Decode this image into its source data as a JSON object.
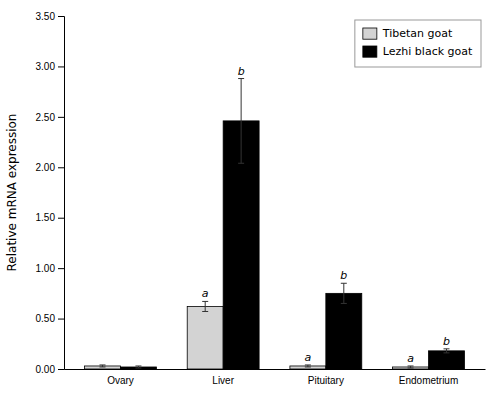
{
  "chart_data": {
    "type": "bar",
    "ylabel": "Relative mRNA expression",
    "categories": [
      "Ovary",
      "Liver",
      "Pituitary",
      "Endometrium"
    ],
    "series": [
      {
        "name": "Tibetan goat",
        "color": "#d3d3d3",
        "values": [
          0.03,
          0.62,
          0.03,
          0.02
        ],
        "errors": [
          0.01,
          0.05,
          0.01,
          0.01
        ],
        "letters": [
          null,
          "a",
          "a",
          "a"
        ]
      },
      {
        "name": "Lezhi black goat",
        "color": "#000000",
        "values": [
          0.02,
          2.46,
          0.75,
          0.18
        ],
        "errors": [
          0.01,
          0.42,
          0.1,
          0.02
        ],
        "letters": [
          null,
          "b",
          "b",
          "b"
        ]
      }
    ],
    "ylim": [
      0,
      3.5
    ],
    "yticks": [
      {
        "value": 0,
        "label": "0.00"
      },
      {
        "value": 0.5,
        "label": "0.50"
      },
      {
        "value": 1,
        "label": "1.00"
      },
      {
        "value": 1.5,
        "label": "1.50"
      },
      {
        "value": 2,
        "label": "2.00"
      },
      {
        "value": 2.5,
        "label": "2.50"
      },
      {
        "value": 3,
        "label": "3.00"
      },
      {
        "value": 3.5,
        "label": "3.50"
      }
    ],
    "legend": "upper right",
    "grid": false
  }
}
